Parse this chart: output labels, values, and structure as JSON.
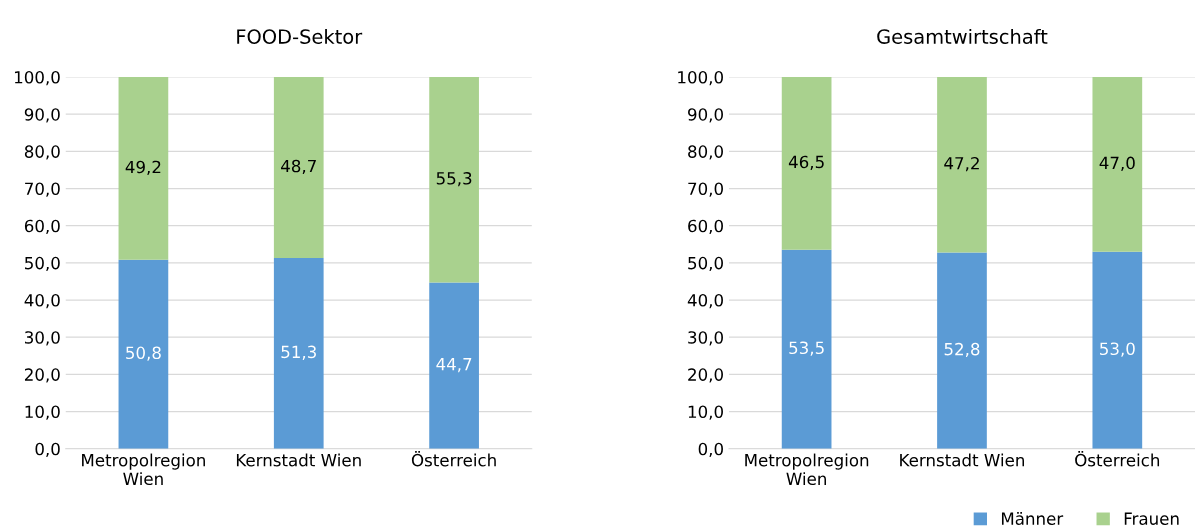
{
  "chart_data": [
    {
      "type": "bar",
      "stacked": true,
      "title": "FOOD-Sektor",
      "categories": [
        "Metropolregion Wien",
        "Kernstadt Wien",
        "Österreich"
      ],
      "series": [
        {
          "color": "#5b9bd5",
          "values": [
            50.8,
            51.3,
            44.7
          ],
          "value_labels": [
            "50,8",
            "51,3",
            "44,7"
          ]
        },
        {
          "color": "#a9d18e",
          "values": [
            49.2,
            48.7,
            55.3
          ],
          "value_labels": [
            "49,2",
            "48,7",
            "55,3"
          ]
        }
      ],
      "ylim": [
        0,
        100
      ],
      "yticks": [
        {
          "value": 0,
          "label": "0,0"
        },
        {
          "value": 10,
          "label": "10,0"
        },
        {
          "value": 20,
          "label": "20,0"
        },
        {
          "value": 30,
          "label": "30,0"
        },
        {
          "value": 40,
          "label": "40,0"
        },
        {
          "value": 50,
          "label": "50,0"
        },
        {
          "value": 60,
          "label": "60,0"
        },
        {
          "value": 70,
          "label": "70,0"
        },
        {
          "value": 80,
          "label": "80,0"
        },
        {
          "value": 90,
          "label": "90,0"
        },
        {
          "value": 100,
          "label": "100,0"
        }
      ],
      "grid": "y"
    },
    {
      "type": "bar",
      "stacked": true,
      "title": "Gesamtwirtschaft",
      "categories": [
        "Metropolregion Wien",
        "Kernstadt Wien",
        "Österreich"
      ],
      "series": [
        {
          "name": "Männer",
          "color": "#5b9bd5",
          "values": [
            53.5,
            52.8,
            53.0
          ],
          "value_labels": [
            "53,5",
            "52,8",
            "53,0"
          ]
        },
        {
          "name": "Frauen",
          "color": "#a9d18e",
          "values": [
            46.5,
            47.2,
            47.0
          ],
          "value_labels": [
            "46,5",
            "47,2",
            "47,0"
          ]
        }
      ],
      "ylim": [
        0,
        100
      ],
      "yticks": [
        {
          "value": 0,
          "label": "0,0"
        },
        {
          "value": 10,
          "label": "10,0"
        },
        {
          "value": 20,
          "label": "20,0"
        },
        {
          "value": 30,
          "label": "30,0"
        },
        {
          "value": 40,
          "label": "40,0"
        },
        {
          "value": 50,
          "label": "50,0"
        },
        {
          "value": 60,
          "label": "60,0"
        },
        {
          "value": 70,
          "label": "70,0"
        },
        {
          "value": 80,
          "label": "80,0"
        },
        {
          "value": 90,
          "label": "90,0"
        },
        {
          "value": 100,
          "label": "100,0"
        }
      ],
      "grid": "y",
      "legend": "bottom right"
    }
  ]
}
